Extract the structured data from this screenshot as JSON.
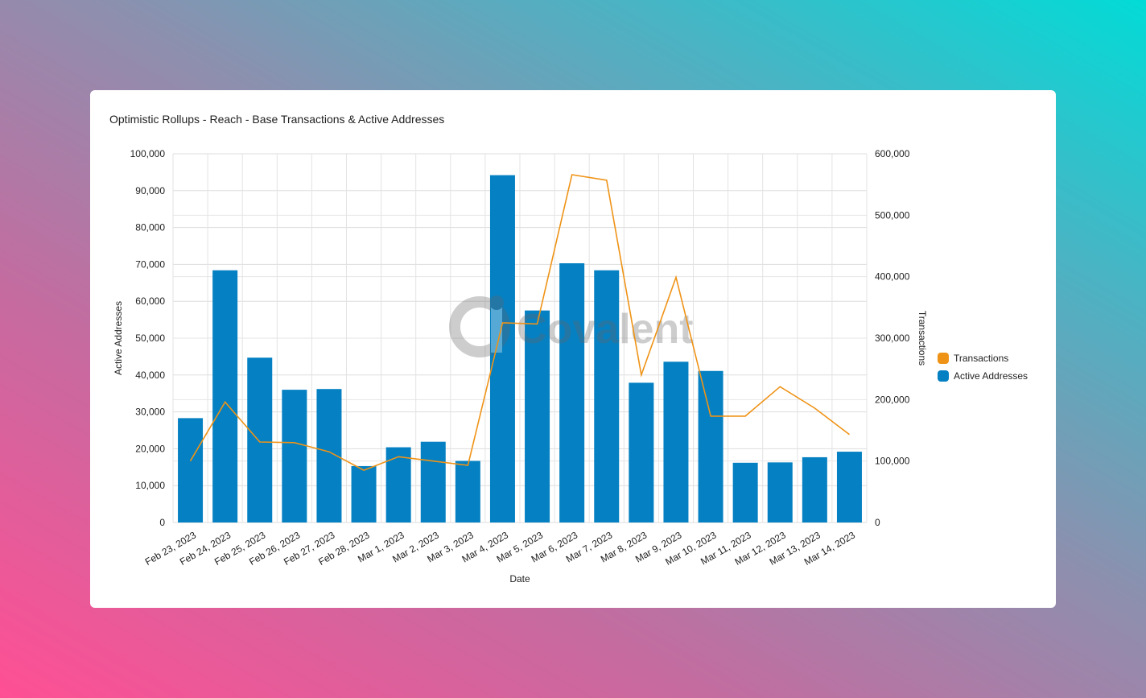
{
  "watermark": "Covalent",
  "chart_data": {
    "type": "bar",
    "title": "Optimistic Rollups - Reach - Base Transactions & Active Addresses",
    "xlabel": "Date",
    "ylabel": "Active Addresses",
    "y2label": "Transactions",
    "ylim": [
      0,
      100000
    ],
    "y2lim": [
      0,
      600000
    ],
    "yticks": [
      "0",
      "10,000",
      "20,000",
      "30,000",
      "40,000",
      "50,000",
      "60,000",
      "70,000",
      "80,000",
      "90,000",
      "100,000"
    ],
    "y2ticks": [
      "0",
      "100,000",
      "200,000",
      "300,000",
      "400,000",
      "500,000",
      "600,000"
    ],
    "categories": [
      "Feb 23, 2023",
      "Feb 24, 2023",
      "Feb 25, 2023",
      "Feb 26, 2023",
      "Feb 27, 2023",
      "Feb 28, 2023",
      "Mar 1, 2023",
      "Mar 2, 2023",
      "Mar 3, 2023",
      "Mar 4, 2023",
      "Mar 5, 2023",
      "Mar 6, 2023",
      "Mar 7, 2023",
      "Mar 8, 2023",
      "Mar 9, 2023",
      "Mar 10, 2023",
      "Mar 11, 2023",
      "Mar 12, 2023",
      "Mar 13, 2023",
      "Mar 14, 2023"
    ],
    "series": [
      {
        "name": "Active Addresses",
        "type": "bar",
        "axis": "left",
        "color": "#0580c2",
        "values": [
          28300,
          68400,
          44700,
          36000,
          36200,
          15300,
          20400,
          21900,
          16700,
          94200,
          57500,
          70300,
          68400,
          37900,
          43600,
          41100,
          16200,
          16300,
          17700,
          19200
        ]
      },
      {
        "name": "Transactions",
        "type": "line",
        "axis": "right",
        "color": "#ef9316",
        "values": [
          100000,
          196000,
          131000,
          130000,
          115000,
          85000,
          107000,
          100000,
          93000,
          325000,
          323000,
          566000,
          557000,
          240000,
          399000,
          173000,
          173000,
          221000,
          186000,
          143000
        ]
      }
    ],
    "legend": [
      {
        "name": "Transactions",
        "color": "#ef9316"
      },
      {
        "name": "Active Addresses",
        "color": "#0580c2"
      }
    ],
    "legend_position": "right",
    "grid": true
  }
}
